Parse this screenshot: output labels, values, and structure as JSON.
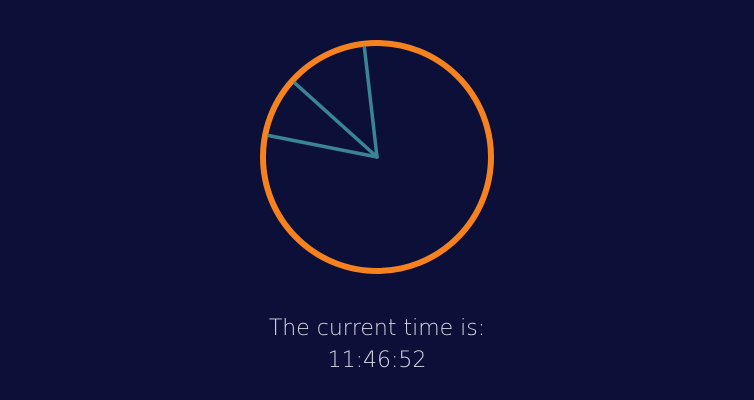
{
  "caption": {
    "label": "The current time is:",
    "time": "11:46:52"
  },
  "clock": {
    "hours": 11,
    "minutes": 46,
    "seconds": 52,
    "face_color": "#f5821f",
    "hand_color": "#3a8496",
    "background": "#0c1038"
  }
}
